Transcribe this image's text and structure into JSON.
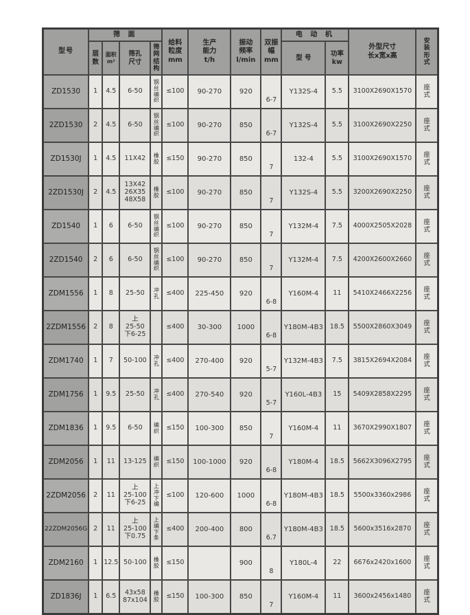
{
  "table": {
    "header": {
      "model": "型号",
      "screen_group": "筛 面",
      "layers": "层\n数",
      "area": "面积\nm²",
      "mesh_size": "筛孔\n尺寸",
      "mesh_structure": "筛网结构",
      "feed_size": "给料\n粒度\nmm",
      "capacity": "生产\n能力\nt/h",
      "frequency": "振动\n频率\nl/min",
      "amplitude": "双振\n幅\nmm",
      "motor_group": "电 动 机",
      "motor_model": "型  号",
      "power": "功率\nkw",
      "dimensions": "外型尺寸\n长x宽x高",
      "installation": "安装形式"
    },
    "rows": [
      {
        "model": "ZD1530",
        "layers": "1",
        "area": "4.5",
        "mesh_size": "6-50",
        "mesh_structure": "钢丝编织",
        "feed_size": "≤100",
        "capacity": "90-270",
        "frequency": "920",
        "amplitude": "6-7",
        "motor_model": "Y132S-4",
        "power": "5.5",
        "dimensions": "3100X2690X1570",
        "installation": "座式"
      },
      {
        "model": "2ZD1530",
        "layers": "2",
        "area": "4.5",
        "mesh_size": "6-50",
        "mesh_structure": "钢丝编织",
        "feed_size": "≤100",
        "capacity": "90-270",
        "frequency": "850",
        "amplitude": "6-7",
        "motor_model": "Y132S-4",
        "power": "5.5",
        "dimensions": "3100X2690X2250",
        "installation": "座式"
      },
      {
        "model": "ZD1530J",
        "layers": "1",
        "area": "4.5",
        "mesh_size": "11X42",
        "mesh_structure": "橡胶",
        "feed_size": "≤150",
        "capacity": "90-270",
        "frequency": "850",
        "amplitude": "7",
        "motor_model": "132-4",
        "power": "5.5",
        "dimensions": "3100X2690X1570",
        "installation": "座式"
      },
      {
        "model": "2ZD1530J",
        "layers": "2",
        "area": "4.5",
        "mesh_size": "13X42\n26X35\n48X58",
        "mesh_structure": "橡胶",
        "feed_size": "≤100",
        "capacity": "90-270",
        "frequency": "850",
        "amplitude": "7",
        "motor_model": "Y132S-4",
        "power": "5.5",
        "dimensions": "3200X2690X2250",
        "installation": "座式"
      },
      {
        "model": "ZD1540",
        "layers": "1",
        "area": "6",
        "mesh_size": "6-50",
        "mesh_structure": "钢丝编织",
        "feed_size": "≤100",
        "capacity": "90-270",
        "frequency": "850",
        "amplitude": "7",
        "motor_model": "Y132M-4",
        "power": "7.5",
        "dimensions": "4000X2505X2028",
        "installation": "座式"
      },
      {
        "model": "2ZD1540",
        "layers": "2",
        "area": "6",
        "mesh_size": "6-50",
        "mesh_structure": "钢丝编织",
        "feed_size": "≤100",
        "capacity": "90-270",
        "frequency": "850",
        "amplitude": "7",
        "motor_model": "Y132M-4",
        "power": "7.5",
        "dimensions": "4200X2600X2660",
        "installation": "座式"
      },
      {
        "model": "ZDM1556",
        "layers": "1",
        "area": "8",
        "mesh_size": "25-50",
        "mesh_structure": "冲孔",
        "feed_size": "≤400",
        "capacity": "225-450",
        "frequency": "920",
        "amplitude": "6-8",
        "motor_model": "Y160M-4",
        "power": "11",
        "dimensions": "5410X2466X2256",
        "installation": "座式"
      },
      {
        "model": "2ZDM1556",
        "layers": "2",
        "area": "8",
        "mesh_size": "上\n25-50\n下6-25",
        "mesh_structure": "",
        "feed_size": "≤400",
        "capacity": "30-300",
        "frequency": "1000",
        "amplitude": "6-8",
        "motor_model": "Y180M-4B3",
        "power": "18.5",
        "dimensions": "5500X2860X3049",
        "installation": "座式"
      },
      {
        "model": "ZDM1740",
        "layers": "1",
        "area": "7",
        "mesh_size": "50-100",
        "mesh_structure": "冲孔",
        "feed_size": "≤400",
        "capacity": "270-400",
        "frequency": "920",
        "amplitude": "5-7",
        "motor_model": "Y132M-4B3",
        "power": "7.5",
        "dimensions": "3815X2694X2084",
        "installation": "座式"
      },
      {
        "model": "ZDM1756",
        "layers": "1",
        "area": "9.5",
        "mesh_size": "25-50",
        "mesh_structure": "冲孔",
        "feed_size": "≤400",
        "capacity": "270-540",
        "frequency": "920",
        "amplitude": "5-7",
        "motor_model": "Y160L-4B3",
        "power": "15",
        "dimensions": "5409X2858X2295",
        "installation": "座式"
      },
      {
        "model": "ZDM1836",
        "layers": "1",
        "area": "9.5",
        "mesh_size": "6-50",
        "mesh_structure": "编织",
        "feed_size": "≤150",
        "capacity": "100-300",
        "frequency": "850",
        "amplitude": "7",
        "motor_model": "Y160M-4",
        "power": "11",
        "dimensions": "3670X2990X1807",
        "installation": "座式"
      },
      {
        "model": "ZDM2056",
        "layers": "1",
        "area": "11",
        "mesh_size": "13-125",
        "mesh_structure": "编织",
        "feed_size": "≤150",
        "capacity": "100-1000",
        "frequency": "920",
        "amplitude": "6-8",
        "motor_model": "Y180M-4",
        "power": "18.5",
        "dimensions": "5662X3096X2795",
        "installation": "座式"
      },
      {
        "model": "2ZDM2056",
        "layers": "2",
        "area": "11",
        "mesh_size": "上\n25-100\n下6-25",
        "mesh_structure": "上冲下编",
        "feed_size": "≤100",
        "capacity": "120-600",
        "frequency": "1000",
        "amplitude": "6-8",
        "motor_model": "Y180M-4B3",
        "power": "18.5",
        "dimensions": "5500x3360x2986",
        "installation": "座式"
      },
      {
        "model": "22ZDM2056G",
        "layers": "2",
        "area": "11",
        "mesh_size": "上\n25-100\n下0.75",
        "mesh_structure": "上编下条",
        "feed_size": "≤400",
        "capacity": "200-400",
        "frequency": "800",
        "amplitude": "6.7",
        "motor_model": "Y180M-4B3",
        "power": "18.5",
        "dimensions": "5600x3516x2870",
        "installation": "座式"
      },
      {
        "model": "ZDM2160",
        "layers": "1",
        "area": "12.5",
        "mesh_size": "50-100",
        "mesh_structure": "橡胶",
        "feed_size": "≤150",
        "capacity": "",
        "frequency": "900",
        "amplitude": "8",
        "motor_model": "Y180L-4",
        "power": "22",
        "dimensions": "6676x2420x1600",
        "installation": "座式"
      },
      {
        "model": "ZD1836J",
        "layers": "1",
        "area": "6.5",
        "mesh_size": "43x58\n87x104",
        "mesh_structure": "橡胶",
        "feed_size": "≤150",
        "capacity": "100-300",
        "frequency": "850",
        "amplitude": "7",
        "motor_model": "Y160M-4",
        "power": "11",
        "dimensions": "3600x2456x1480",
        "installation": "座式"
      }
    ]
  }
}
